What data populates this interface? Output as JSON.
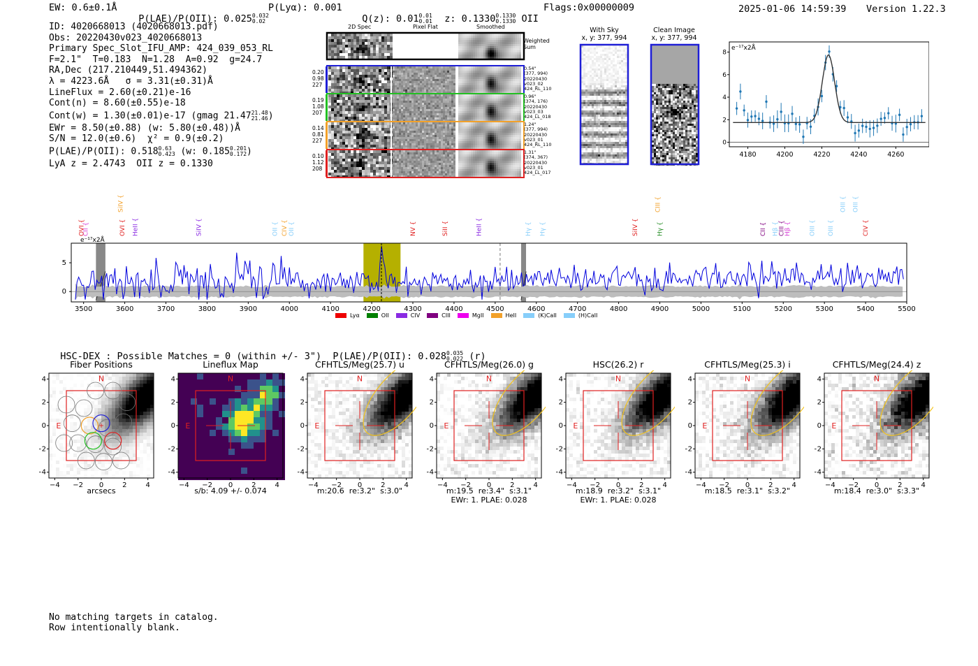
{
  "header": {
    "ew": "EW: 0.6±0.1Å",
    "plae_label": "P(LAE)/P(OII): 0.025",
    "plae_hi": "0.032",
    "plae_lo": "0.02",
    "plya": "P(Lyα): 0.001",
    "qz_label": "Q(z): 0.01",
    "qz_hi": "0.01",
    "qz_lo": "0.01",
    "z_label": "z: 0.1330",
    "z_hi": "0.1330",
    "z_lo": "0.1330",
    "z_line": "OII",
    "flags": "Flags:0x00000009",
    "datetime": "2025-01-06 14:59:39",
    "version": "Version 1.22.3"
  },
  "info": {
    "id": "ID: 4020668013 (4020668013.pdf)",
    "obs": "Obs: 20220430v023_4020668013",
    "primary": "Primary Spec_Slot_IFU_AMP: 424_039_053_RL",
    "fparams": "F=2.1\"  T=0.183  N=1.28  A=0.92  g=24.7",
    "radec": "RA,Dec (217.210449,51.494362)",
    "lambda": "λ = 4223.6Å   σ = 3.31(±0.31)Å",
    "lineflux": "LineFlux = 2.60(±0.21)e-16",
    "contn": "Cont(n) = 8.60(±0.55)e-18",
    "contw": "Cont(w) = 1.30(±0.01)e-17 (gmag 21.47",
    "contw_hi": "21.48",
    "contw_lo": "21.46",
    "contw_end": ")",
    "ewr": "EWr = 8.50(±0.88) (w: 5.80(±0.48))Å",
    "sn": "S/N = 12.0(±0.6)  χ² = 0.9(±0.2)",
    "plae": "P(LAE)/P(OII): 0.518",
    "plae_hi": "0.63",
    "plae_lo": "0.423",
    "plae_w": "(w: 0.185",
    "plae_w_hi": "0.201",
    "plae_w_lo": "0.172",
    "plae_end": ")",
    "lyaz": "LyA z = 2.4743  OII z = 0.1330"
  },
  "cutouts": {
    "col_labels": [
      "2D Spec",
      "Pixel Flat",
      "Smoothed"
    ],
    "weighted": "Weighted\nSum",
    "rows": [
      {
        "left": "0.20\n0.98\n227",
        "right": "0.54\"\n(377, 994)\n20220430\nv023_02\n424_RL_110",
        "color": "#1f1fd6"
      },
      {
        "left": "0.19\n1.08\n207",
        "right": "0.96\"\n(374, 176)\n20220430\nv023_03\n424_LL_018",
        "color": "#22c022"
      },
      {
        "left": "0.14\n0.81\n227",
        "right": "1.24\"\n(377, 994)\n20220430\nv023_01\n424_RL_110",
        "color": "#f2a12a"
      },
      {
        "left": "0.10\n1.12\n208",
        "right": "1.31\"\n(374, 367)\n20220430\nv023_01\n424_LL_017",
        "color": "#e02020"
      }
    ],
    "with_sky": "With Sky",
    "with_sky_xy": "x, y: 377, 994",
    "clean": "Clean Image",
    "clean_xy": "x, y: 377, 994"
  },
  "zoom_chart": {
    "type": "line",
    "ylabel": "e⁻¹⁷x2Å",
    "xlim": [
      4170,
      4278
    ],
    "ylim": [
      -0.4,
      8.9
    ],
    "xticks": [
      4180,
      4200,
      4220,
      4240,
      4260
    ],
    "yticks": [
      0,
      2,
      4,
      6,
      8
    ],
    "continuum": 1.75,
    "peak_center": 4223.6,
    "peak_amp": 6.0,
    "peak_sigma": 3.31
  },
  "chart_data": {
    "type": "line",
    "title": "",
    "ylabel": "e⁻¹⁷x2Å",
    "xlabel": "",
    "xlim": [
      3470,
      5500
    ],
    "ylim": [
      -1.8,
      8.4
    ],
    "xticks": [
      3500,
      3600,
      3700,
      3800,
      3900,
      4000,
      4100,
      4200,
      4300,
      4400,
      4500,
      4600,
      4700,
      4800,
      4900,
      5000,
      5100,
      5200,
      5300,
      5400,
      5500
    ],
    "yticks": [
      0,
      5
    ],
    "emission_line": 4223.6,
    "highlight_range": [
      4180,
      4270
    ],
    "dashed_line": 4512,
    "masked_ranges": [
      [
        3530,
        3553
      ],
      [
        4563,
        4575
      ]
    ],
    "line_labels": [
      {
        "name": "CII",
        "x": 3505,
        "color": "#d63bd6",
        "level": "low"
      },
      {
        "name": "OVI",
        "x": 3495,
        "color": "#e02020",
        "level": "low"
      },
      {
        "name": "SiIV",
        "x": 3590,
        "color": "#f2a12a",
        "level": "high"
      },
      {
        "name": "OVI",
        "x": 3594,
        "color": "#e02020",
        "level": "low"
      },
      {
        "name": "HeII",
        "x": 3625,
        "color": "#8a2be2",
        "level": "low"
      },
      {
        "name": "SiIV",
        "x": 3780,
        "color": "#8a2be2",
        "level": "low"
      },
      {
        "name": "OII",
        "x": 3965,
        "color": "#87cefa",
        "level": "low"
      },
      {
        "name": "CIV",
        "x": 3988,
        "color": "#f2a12a",
        "level": "low"
      },
      {
        "name": "OII",
        "x": 4005,
        "color": "#87cefa",
        "level": "low"
      },
      {
        "name": "NV",
        "x": 4300,
        "color": "#e02020",
        "level": "low"
      },
      {
        "name": "SiII",
        "x": 4378,
        "color": "#e02020",
        "level": "low"
      },
      {
        "name": "HeII",
        "x": 4460,
        "color": "#8a2be2",
        "level": "low"
      },
      {
        "name": "Hγ",
        "x": 4580,
        "color": "#87cefa",
        "level": "low"
      },
      {
        "name": "Hγ",
        "x": 4615,
        "color": "#87cefa",
        "level": "low"
      },
      {
        "name": "SiIV",
        "x": 4840,
        "color": "#e02020",
        "level": "low"
      },
      {
        "name": "CIII",
        "x": 4895,
        "color": "#f2a12a",
        "level": "high"
      },
      {
        "name": "Hγ",
        "x": 4900,
        "color": "#228b22",
        "level": "low"
      },
      {
        "name": "CII",
        "x": 5150,
        "color": "#800080",
        "level": "low"
      },
      {
        "name": "Hβ",
        "x": 5180,
        "color": "#87cefa",
        "level": "low"
      },
      {
        "name": "CIII",
        "x": 5195,
        "color": "#800080",
        "level": "low"
      },
      {
        "name": "Hβ",
        "x": 5210,
        "color": "#d63bd6",
        "level": "low"
      },
      {
        "name": "OIII",
        "x": 5270,
        "color": "#87cefa",
        "level": "low"
      },
      {
        "name": "OIII",
        "x": 5345,
        "color": "#87cefa",
        "level": "high"
      },
      {
        "name": "OIII",
        "x": 5315,
        "color": "#87cefa",
        "level": "low"
      },
      {
        "name": "OIII",
        "x": 5375,
        "color": "#87cefa",
        "level": "high"
      },
      {
        "name": "CIV",
        "x": 5400,
        "color": "#e02020",
        "level": "low"
      }
    ],
    "legend": [
      {
        "name": "Lyα",
        "color": "#ee0000"
      },
      {
        "name": "OII",
        "color": "#008000"
      },
      {
        "name": "CIV",
        "color": "#8a2be2"
      },
      {
        "name": "CIII",
        "color": "#800080"
      },
      {
        "name": "MgII",
        "color": "#ee00ee"
      },
      {
        "name": "HeII",
        "color": "#f2a12a"
      },
      {
        "name": "(K)CaII",
        "color": "#87cefa"
      },
      {
        "name": "(H)CaII",
        "color": "#87cefa"
      }
    ]
  },
  "hsc": {
    "title": "HSC-DEX : Possible Matches = 0 (within +/- 3\")  P(LAE)/P(OII): 0.028",
    "hi": "0.035",
    "lo": "0.022",
    "end": "(r)"
  },
  "panels": [
    {
      "title": "Fiber Positions",
      "sub": "arcsecs",
      "sub2": ""
    },
    {
      "title": "Lineflux Map",
      "sub": "s/b: 4.09 +/- 0.074",
      "sub2": ""
    },
    {
      "title": "CFHTLS/Meg(25.7) u",
      "sub": "m:20.6  re:3.2\"  s:3.0\"",
      "sub2": ""
    },
    {
      "title": "CFHTLS/Meg(26.0) g",
      "sub": "m:19.5  re:3.4\"  s:3.1\"",
      "sub2": "EWr: 1. PLAE: 0.028"
    },
    {
      "title": "HSC(26.2) r",
      "sub": "m:18.9  re:3.2\"  s:3.1\"",
      "sub2": "EWr: 1. PLAE: 0.028"
    },
    {
      "title": "CFHTLS/Meg(25.3) i",
      "sub": "m:18.5  re:3.1\"  s:3.2\"",
      "sub2": ""
    },
    {
      "title": "CFHTLS/Meg(24.4) z",
      "sub": "m:18.4  re:3.0\"  s:3.3\"",
      "sub2": ""
    }
  ],
  "panel_axes": {
    "ticks": [
      "-4",
      "-2",
      "0",
      "2",
      "4"
    ],
    "north": "N",
    "east": "E"
  },
  "footer": {
    "line1": "No matching targets in catalog.",
    "line2": "Row intentionally blank."
  }
}
